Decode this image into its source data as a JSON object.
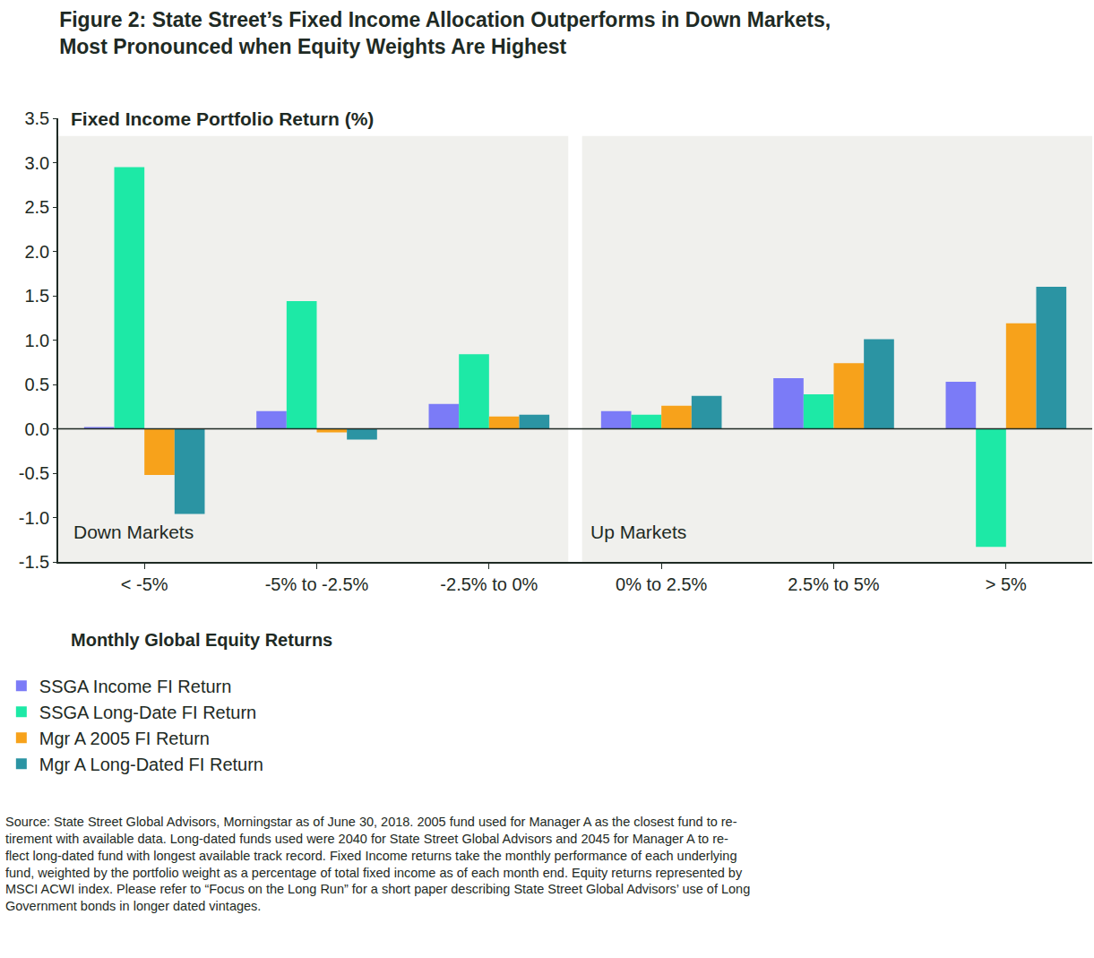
{
  "chart_data": {
    "type": "bar",
    "title": [
      "Figure 2: State Street’s Fixed Income Allocation Outperforms in Down Markets,",
      "Most Pronounced when Equity Weights Are Highest"
    ],
    "y_label": "Fixed Income Portfolio Return (%)",
    "x_label": "Monthly Global Equity Returns",
    "categories": [
      "< -5%",
      "-5% to -2.5%",
      "-2.5% to 0%",
      "0% to 2.5%",
      "2.5% to 5%",
      "> 5%"
    ],
    "panels": [
      {
        "label": "Down Markets",
        "from": "< -5%",
        "to": "-2.5% to 0%"
      },
      {
        "label": "Up Markets",
        "from": "0% to 2.5%",
        "to": "> 5%"
      }
    ],
    "series": [
      {
        "name": "SSGA Income FI Return",
        "color": "#7b7bf7",
        "values": [
          0.02,
          0.2,
          0.28,
          0.2,
          0.57,
          0.53
        ]
      },
      {
        "name": "SSGA Long-Date FI Return",
        "color": "#1de9a6",
        "values": [
          2.95,
          1.44,
          0.84,
          0.16,
          0.39,
          -1.33
        ]
      },
      {
        "name": "Mgr A 2005 FI Return",
        "color": "#f7a21b",
        "values": [
          -0.52,
          -0.04,
          0.14,
          0.26,
          0.74,
          1.19
        ]
      },
      {
        "name": "Mgr A Long-Dated FI Return",
        "color": "#2b94a3",
        "values": [
          -0.96,
          -0.12,
          0.16,
          0.37,
          1.01,
          1.6
        ]
      }
    ],
    "ylim": [
      -1.5,
      3.5
    ],
    "yticks": [
      -1.5,
      {
        "value": -1,
        "label": "-1.0"
      },
      -0.5,
      {
        "value": 0,
        "label": "0.0"
      },
      0.5,
      {
        "value": 1,
        "label": "1.0"
      },
      1.5,
      {
        "value": 2,
        "label": "2.0"
      },
      2.5,
      {
        "value": 3,
        "label": "3.0"
      },
      3.5
    ],
    "grid": false,
    "legend": "bottom-left",
    "note": [
      "Source: State Street Global Advisors, Morningstar as of June 30, 2018. 2005 fund used for Manager A as the closest fund to re-",
      "tirement with available data. Long-dated funds used were 2040 for State Street Global Advisors and 2045 for Manager A to re-",
      "flect long-dated fund with longest available track record. Fixed Income returns take the monthly performance of each underlying",
      "fund, weighted by the portfolio weight as a percentage of total fixed income as of each month end. Equity returns represented by",
      "MSCI ACWI index. Please refer to “Focus on the Long Run” for a short paper describing State Street Global Advisors’ use of Long",
      "Government bonds in longer dated vintages."
    ]
  }
}
